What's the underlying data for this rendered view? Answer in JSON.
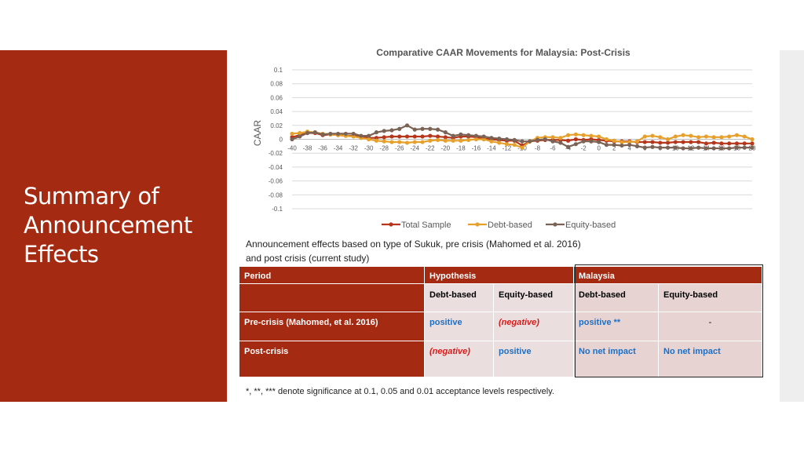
{
  "slide": {
    "title_lines": [
      "Summary of",
      "Announcement",
      "Effects"
    ]
  },
  "colors": {
    "panel": "#a52a12",
    "total_sample": "#b5361a",
    "debt_based": "#e6a12c",
    "equity_based": "#7a6255",
    "blue_text": "#1d6fc4",
    "red_text": "#d61b1b"
  },
  "chart_data": {
    "type": "line",
    "title": "Comparative CAAR Movements for Malaysia: Post-Crisis",
    "ylabel": "CAAR",
    "xlabel": "",
    "ylim": [
      -0.1,
      0.1
    ],
    "y_ticks": [
      "0.1",
      "0.08",
      "0.06",
      "0.04",
      "0.02",
      "0",
      "-0.02",
      "-0.04",
      "-0.06",
      "-0.08",
      "-0.1"
    ],
    "x_tick_labels": [
      "-40",
      "-38",
      "-36",
      "-34",
      "-32",
      "-30",
      "-28",
      "-26",
      "-24",
      "-22",
      "-20",
      "-18",
      "-16",
      "-14",
      "-12",
      "-10",
      "-8",
      "-6",
      "-4",
      "-2",
      "0",
      "2",
      "4",
      "6",
      "8",
      "10",
      "12",
      "14",
      "16",
      "18",
      "20"
    ],
    "legend_position": "bottom",
    "grid": true,
    "x": [
      -40,
      -39,
      -38,
      -37,
      -36,
      -35,
      -34,
      -33,
      -32,
      -31,
      -30,
      -29,
      -28,
      -27,
      -26,
      -25,
      -24,
      -23,
      -22,
      -21,
      -20,
      -19,
      -18,
      -17,
      -16,
      -15,
      -14,
      -13,
      -12,
      -11,
      -10,
      -9,
      -8,
      -7,
      -6,
      -5,
      -4,
      -3,
      -2,
      -1,
      0,
      1,
      2,
      3,
      4,
      5,
      6,
      7,
      8,
      9,
      10,
      11,
      12,
      13,
      14,
      15,
      16,
      17,
      18,
      19,
      20
    ],
    "series": [
      {
        "name": "Total Sample",
        "values": [
          0.003,
          0.006,
          0.009,
          0.009,
          0.006,
          0.007,
          0.006,
          0.005,
          0.005,
          0.004,
          0.002,
          0.002,
          0.003,
          0.004,
          0.004,
          0.004,
          0.004,
          0.004,
          0.005,
          0.004,
          0.003,
          0.002,
          0.004,
          0.004,
          0.003,
          0.001,
          0.0,
          -0.001,
          -0.002,
          -0.002,
          -0.009,
          -0.003,
          -0.002,
          -0.001,
          -0.001,
          -0.001,
          -0.002,
          0.0,
          -0.001,
          0.0,
          -0.001,
          -0.002,
          -0.003,
          -0.003,
          -0.003,
          -0.004,
          -0.004,
          -0.004,
          -0.005,
          -0.005,
          -0.004,
          -0.004,
          -0.004,
          -0.004,
          -0.006,
          -0.005,
          -0.006,
          -0.006,
          -0.006,
          -0.006,
          -0.006
        ]
      },
      {
        "name": "Debt-based",
        "values": [
          0.008,
          0.009,
          0.011,
          0.01,
          0.008,
          0.007,
          0.006,
          0.005,
          0.004,
          0.002,
          0.0,
          -0.002,
          -0.003,
          -0.004,
          -0.004,
          -0.005,
          -0.004,
          -0.004,
          -0.002,
          -0.001,
          -0.002,
          -0.002,
          -0.002,
          -0.001,
          0.0,
          0.0,
          -0.003,
          -0.005,
          -0.007,
          -0.008,
          -0.012,
          -0.003,
          0.002,
          0.003,
          0.003,
          0.002,
          0.006,
          0.007,
          0.006,
          0.005,
          0.004,
          0.0,
          -0.002,
          -0.004,
          -0.004,
          -0.003,
          0.004,
          0.005,
          0.003,
          0.0,
          0.004,
          0.006,
          0.005,
          0.003,
          0.004,
          0.003,
          0.003,
          0.004,
          0.006,
          0.004,
          0.0
        ]
      },
      {
        "name": "Equity-based",
        "values": [
          0.0,
          0.004,
          0.009,
          0.01,
          0.007,
          0.008,
          0.008,
          0.008,
          0.008,
          0.005,
          0.005,
          0.01,
          0.012,
          0.013,
          0.015,
          0.02,
          0.014,
          0.015,
          0.015,
          0.014,
          0.01,
          0.005,
          0.007,
          0.006,
          0.005,
          0.004,
          0.002,
          0.001,
          0.0,
          -0.001,
          -0.003,
          -0.003,
          -0.001,
          0.0,
          -0.003,
          -0.005,
          -0.011,
          -0.007,
          -0.003,
          -0.003,
          -0.004,
          -0.008,
          -0.008,
          -0.009,
          -0.008,
          -0.01,
          -0.012,
          -0.011,
          -0.012,
          -0.012,
          -0.012,
          -0.013,
          -0.013,
          -0.012,
          -0.013,
          -0.013,
          -0.013,
          -0.013,
          -0.012,
          -0.012,
          -0.012
        ]
      }
    ]
  },
  "caption": {
    "line1": "Announcement effects based on type of Sukuk, pre crisis (Mahomed et al. 2016)",
    "line2": "and post crisis (current study)"
  },
  "table": {
    "header_period": "Period",
    "header_hypothesis": "Hypothesis",
    "header_malaysia": "Malaysia",
    "sub_debt_1": "Debt-based",
    "sub_equity_1": "Equity-based",
    "sub_debt_2": "Debt-based",
    "sub_equity_2": "Equity-based",
    "rows": [
      {
        "period": "Pre-crisis (Mahomed, et al. 2016)",
        "hyp_debt": "positive",
        "hyp_equity": "(negative)",
        "my_debt": "positive **",
        "my_equity": "-"
      },
      {
        "period": "Post-crisis",
        "hyp_debt": "(negative)",
        "hyp_equity": "positive",
        "my_debt": "No net impact",
        "my_equity": "No net impact"
      }
    ]
  },
  "footnote": "*, **, *** denote significance at 0.1, 0.05 and 0.01 acceptance levels respectively."
}
